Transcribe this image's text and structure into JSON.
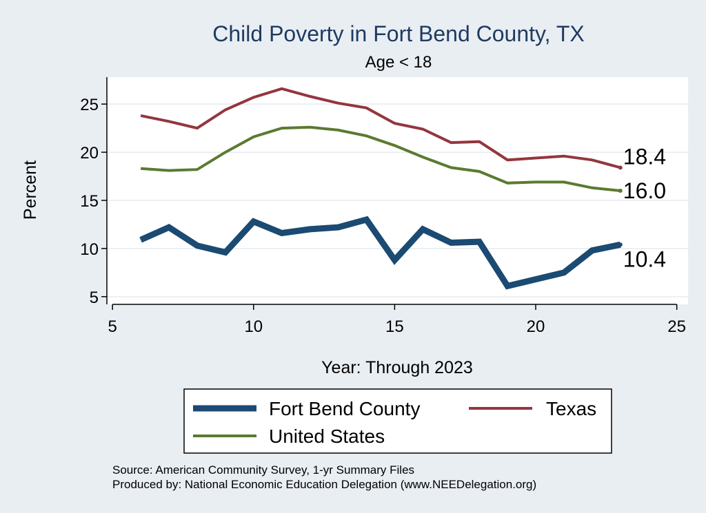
{
  "chart_data": {
    "type": "line",
    "title": "Child Poverty in Fort Bend County, TX",
    "subtitle": "Age < 18",
    "xlabel": "Year: Through 2023",
    "ylabel": "Percent",
    "xlim": [
      4.8,
      25.4
    ],
    "ylim": [
      4.2,
      27.8
    ],
    "xticks": [
      5,
      10,
      15,
      20,
      25
    ],
    "yticks": [
      5,
      10,
      15,
      20,
      25
    ],
    "grid": true,
    "legend_position": "bottom",
    "series": [
      {
        "name": "Fort Bend County",
        "color": "#1b4a72",
        "x": [
          6,
          7,
          8,
          9,
          10,
          11,
          12,
          13,
          14,
          15,
          16,
          17,
          18,
          19,
          20,
          21,
          22,
          23
        ],
        "y": [
          10.9,
          12.2,
          10.3,
          9.6,
          12.8,
          11.6,
          12.0,
          12.2,
          13.0,
          8.8,
          12.0,
          10.6,
          10.7,
          6.1,
          6.8,
          7.5,
          9.8,
          10.4
        ],
        "end_label": "10.4"
      },
      {
        "name": "Texas",
        "color": "#93363e",
        "x": [
          6,
          7,
          8,
          9,
          10,
          11,
          12,
          13,
          14,
          15,
          16,
          17,
          18,
          19,
          20,
          21,
          22,
          23
        ],
        "y": [
          23.8,
          23.2,
          22.5,
          24.4,
          25.7,
          26.6,
          25.8,
          25.1,
          24.6,
          23.0,
          22.4,
          21.0,
          21.1,
          19.2,
          19.4,
          19.6,
          19.2,
          18.4
        ],
        "end_label": "18.4"
      },
      {
        "name": "United States",
        "color": "#5b7a30",
        "x": [
          6,
          7,
          8,
          9,
          10,
          11,
          12,
          13,
          14,
          15,
          16,
          17,
          18,
          19,
          20,
          21,
          22,
          23
        ],
        "y": [
          18.3,
          18.1,
          18.2,
          20.0,
          21.6,
          22.5,
          22.6,
          22.3,
          21.7,
          20.7,
          19.5,
          18.4,
          18.0,
          16.8,
          16.9,
          16.9,
          16.3,
          16.0
        ],
        "end_label": "16.0"
      }
    ],
    "legend": [
      "Fort Bend County",
      "Texas",
      "United States"
    ],
    "source_lines": [
      "Source: American Community Survey, 1-yr Summary Files",
      "Produced by: National Economic Education Delegation (www.NEEDelegation.org)"
    ]
  }
}
